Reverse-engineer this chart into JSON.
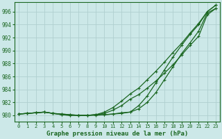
{
  "title": "Graphe pression niveau de la mer (hPa)",
  "xlabel_ticks": [
    0,
    1,
    2,
    3,
    4,
    5,
    6,
    7,
    8,
    9,
    10,
    11,
    12,
    13,
    14,
    15,
    16,
    17,
    18,
    19,
    20,
    21,
    22,
    23
  ],
  "yticks": [
    980,
    982,
    984,
    986,
    988,
    990,
    992,
    994,
    996
  ],
  "ylim": [
    979.0,
    997.5
  ],
  "xlim": [
    -0.5,
    23.5
  ],
  "background_color": "#cce8e8",
  "grid_color": "#b0d0d0",
  "line_color": "#1a6620",
  "line1_y": [
    980.2,
    980.3,
    980.4,
    980.5,
    980.3,
    980.2,
    980.1,
    980.0,
    980.0,
    980.1,
    980.3,
    980.8,
    981.5,
    982.5,
    983.2,
    984.2,
    985.3,
    986.5,
    987.8,
    989.3,
    990.8,
    992.2,
    995.5,
    996.5
  ],
  "line2_y": [
    980.2,
    980.3,
    980.4,
    980.5,
    980.3,
    980.2,
    980.1,
    980.0,
    980.0,
    980.1,
    980.5,
    981.2,
    982.2,
    983.3,
    984.2,
    985.5,
    986.8,
    988.2,
    989.7,
    991.1,
    992.7,
    994.2,
    996.0,
    997.0
  ],
  "line3_y": [
    980.2,
    980.3,
    980.4,
    980.5,
    980.3,
    980.1,
    980.0,
    980.0,
    980.0,
    980.0,
    980.1,
    980.2,
    980.3,
    980.5,
    981.0,
    982.0,
    983.5,
    985.5,
    987.5,
    989.5,
    991.2,
    993.0,
    995.8,
    996.5
  ],
  "line4_y": [
    980.2,
    980.3,
    980.4,
    980.5,
    980.3,
    980.1,
    980.0,
    980.0,
    980.0,
    980.1,
    980.1,
    980.2,
    980.4,
    980.5,
    981.5,
    983.0,
    985.0,
    987.0,
    989.0,
    990.8,
    992.5,
    994.0,
    996.0,
    997.0
  ]
}
